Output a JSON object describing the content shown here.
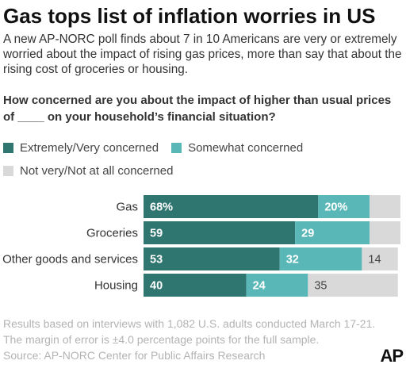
{
  "header": {
    "title": "Gas tops list of inflation worries in US",
    "intro": "A new AP-NORC poll finds about 7 in 10 Americans are very or extremely worried about the impact of rising gas prices, more than say that about the rising cost of groceries or housing.",
    "question": "How concerned are you about the impact of higher than usual prices of ____ on your household’s financial situation?"
  },
  "legend": [
    {
      "label": "Extremely/Very concerned",
      "color": "#2f7570"
    },
    {
      "label": "Somewhat concerned",
      "color": "#5ab7b7"
    },
    {
      "label": "Not very/Not at all concerned",
      "color": "#d9d9d9"
    }
  ],
  "chart_data": {
    "type": "bar",
    "orientation": "horizontal",
    "stacked": true,
    "categories": [
      "Gas",
      "Groceries",
      "Other goods and services",
      "Housing"
    ],
    "series": [
      {
        "name": "Extremely/Very concerned",
        "values": [
          68,
          59,
          53,
          40
        ],
        "labels": [
          "68%",
          "59",
          "53",
          "40"
        ],
        "color": "#2f7570"
      },
      {
        "name": "Somewhat concerned",
        "values": [
          20,
          29,
          32,
          24
        ],
        "labels": [
          "20%",
          "29",
          "32",
          "24"
        ],
        "color": "#5ab7b7"
      },
      {
        "name": "Not very/Not at all concerned",
        "values": [
          12,
          12,
          14,
          35
        ],
        "labels": [
          "",
          "",
          "14",
          "35"
        ],
        "color": "#d9d9d9"
      }
    ],
    "xlim": [
      0,
      100
    ]
  },
  "footer": {
    "note": "Results based on interviews with 1,082 U.S. adults conducted March 17-21. The margin of error is ±4.0 percentage points for the full sample.",
    "source": "Source: AP-NORC Center for Public Affairs Research",
    "logo": "AP"
  }
}
